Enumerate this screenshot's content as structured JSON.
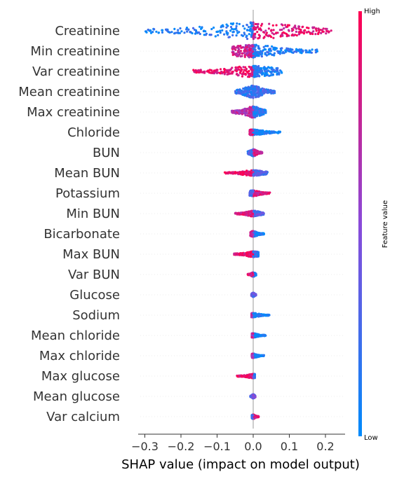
{
  "chart_data": {
    "type": "scatter",
    "subtype": "shap-beeswarm",
    "xlabel": "SHAP value (impact on model output)",
    "xlim": [
      -0.31,
      0.25
    ],
    "xticks": [
      -0.3,
      -0.2,
      -0.1,
      0.0,
      0.1,
      0.2
    ],
    "xtick_labels": [
      "−0.3",
      "−0.2",
      "−0.1",
      "0.0",
      "0.1",
      "0.2"
    ],
    "zero_line": true,
    "colorbar": {
      "label": "Feature value",
      "high_label": "High",
      "low_label": "Low",
      "low_color": "#008bfb",
      "high_color": "#ff0051"
    },
    "features": [
      {
        "name": "Creatinine",
        "min": -0.3,
        "max": 0.225,
        "spread": 12,
        "neg_color": 0.1,
        "pos_color": 0.85
      },
      {
        "name": "Min creatinine",
        "min": -0.06,
        "max": 0.18,
        "spread": 9,
        "neg_color": 0.75,
        "pos_color": 0.1
      },
      {
        "name": "Var creatinine",
        "min": -0.17,
        "max": 0.08,
        "spread": 8,
        "neg_color": 0.9,
        "pos_color": 0.1
      },
      {
        "name": "Mean creatinine",
        "min": -0.05,
        "max": 0.06,
        "spread": 9,
        "neg_color": 0.2,
        "pos_color": 0.2
      },
      {
        "name": "Max creatinine",
        "min": -0.06,
        "max": 0.035,
        "spread": 8,
        "neg_color": 0.7,
        "pos_color": 0.15
      },
      {
        "name": "Chloride",
        "min": -0.01,
        "max": 0.075,
        "spread": 4,
        "neg_color": 0.8,
        "pos_color": 0.05
      },
      {
        "name": "BUN",
        "min": -0.015,
        "max": 0.025,
        "spread": 5,
        "neg_color": 0.2,
        "pos_color": 0.8
      },
      {
        "name": "Mean BUN",
        "min": -0.08,
        "max": 0.04,
        "spread": 4,
        "neg_color": 0.9,
        "pos_color": 0.3
      },
      {
        "name": "Potassium",
        "min": -0.01,
        "max": 0.05,
        "spread": 4,
        "neg_color": 0.3,
        "pos_color": 0.85
      },
      {
        "name": "Min BUN",
        "min": -0.05,
        "max": 0.03,
        "spread": 4,
        "neg_color": 0.85,
        "pos_color": 0.3
      },
      {
        "name": "Bicarbonate",
        "min": -0.008,
        "max": 0.03,
        "spread": 4,
        "neg_color": 0.7,
        "pos_color": 0.1
      },
      {
        "name": "Max BUN",
        "min": -0.055,
        "max": 0.015,
        "spread": 4,
        "neg_color": 0.9,
        "pos_color": 0.2
      },
      {
        "name": "Var BUN",
        "min": -0.015,
        "max": 0.008,
        "spread": 3,
        "neg_color": 0.85,
        "pos_color": 0.1
      },
      {
        "name": "Glucose",
        "min": -0.005,
        "max": 0.008,
        "spread": 3,
        "neg_color": 0.4,
        "pos_color": 0.3
      },
      {
        "name": "Sodium",
        "min": -0.005,
        "max": 0.045,
        "spread": 3,
        "neg_color": 0.7,
        "pos_color": 0.05
      },
      {
        "name": "Mean chloride",
        "min": -0.004,
        "max": 0.035,
        "spread": 3,
        "neg_color": 0.7,
        "pos_color": 0.05
      },
      {
        "name": "Max chloride",
        "min": -0.004,
        "max": 0.03,
        "spread": 3,
        "neg_color": 0.7,
        "pos_color": 0.05
      },
      {
        "name": "Max glucose",
        "min": -0.045,
        "max": 0.005,
        "spread": 3,
        "neg_color": 0.9,
        "pos_color": 0.2
      },
      {
        "name": "Mean glucose",
        "min": -0.008,
        "max": 0.006,
        "spread": 3,
        "neg_color": 0.3,
        "pos_color": 0.4
      },
      {
        "name": "Var calcium",
        "min": -0.004,
        "max": 0.015,
        "spread": 3,
        "neg_color": 0.2,
        "pos_color": 0.9
      }
    ]
  }
}
